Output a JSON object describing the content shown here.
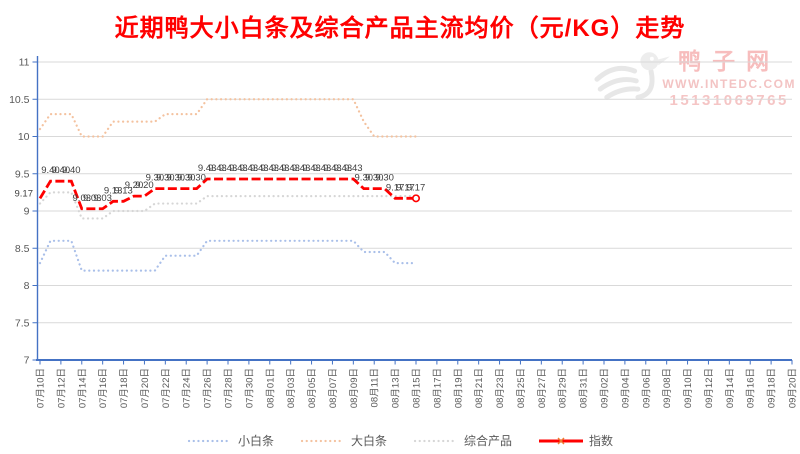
{
  "title": "近期鸭大小白条及综合产品主流均价（元/KG）走势",
  "watermark": {
    "site_name": "鸭子网",
    "url": "WWW.INTEDC.COM",
    "phone": "15131069765",
    "logo_icon": "duck-logo-icon"
  },
  "colors": {
    "title": "#FF0000",
    "axis": "#4472C4",
    "gridline": "#D9D9D9",
    "axis_label": "#595959",
    "data_label": "#404040",
    "watermark_text": "#F6BEBE",
    "watermark_logo": "#E7E7E7",
    "legend_marker_x": "#ED7D31",
    "series_small_white_strip": "#A9BFE9",
    "series_large_white_strip": "#F4C29F",
    "series_composite_product": "#D6D6D6",
    "series_index": "#FF0000"
  },
  "chart_data": {
    "type": "line",
    "title": "近期鸭大小白条及综合产品主流均价（元/KG）走势",
    "xlabel": "",
    "ylabel": "",
    "ylim": [
      7,
      11
    ],
    "yticks": [
      11,
      10.5,
      10,
      9.5,
      9,
      8.5,
      8,
      7.5,
      7
    ],
    "grid": "horizontal",
    "legend_position": "bottom",
    "x_tick_interval_days": 2,
    "x_total_slots": 73,
    "x_tick_labels": [
      "07月10日",
      "07月12日",
      "07月14日",
      "07月16日",
      "07月18日",
      "07月20日",
      "07月22日",
      "07月24日",
      "07月26日",
      "07月28日",
      "07月30日",
      "08月01日",
      "08月03日",
      "08月05日",
      "08月07日",
      "08月09日",
      "08月11日",
      "08月13日",
      "08月15日",
      "08月17日",
      "08月19日",
      "08月21日",
      "08月23日",
      "08月25日",
      "08月27日",
      "08月29日",
      "08月31日",
      "09月02日",
      "09月04日",
      "09月06日",
      "09月08日",
      "09月10日",
      "09月12日",
      "09月14日",
      "09月16日",
      "09月18日",
      "09月20日"
    ],
    "data_dates_range": "07月10日—08月15日",
    "series": [
      {
        "name": "小白条",
        "slug": "small-white-strip",
        "style": "dotted",
        "color": "#A9BFE9",
        "values": [
          8.3,
          8.6,
          8.6,
          8.6,
          8.2,
          8.2,
          8.2,
          8.2,
          8.2,
          8.2,
          8.2,
          8.2,
          8.4,
          8.4,
          8.4,
          8.4,
          8.6,
          8.6,
          8.6,
          8.6,
          8.6,
          8.6,
          8.6,
          8.6,
          8.6,
          8.6,
          8.6,
          8.6,
          8.6,
          8.6,
          8.6,
          8.45,
          8.45,
          8.45,
          8.3,
          8.3,
          8.3
        ]
      },
      {
        "name": "大白条",
        "slug": "large-white-strip",
        "style": "dotted",
        "color": "#F4C29F",
        "values": [
          10.1,
          10.3,
          10.3,
          10.3,
          10.0,
          10.0,
          10.0,
          10.2,
          10.2,
          10.2,
          10.2,
          10.2,
          10.3,
          10.3,
          10.3,
          10.3,
          10.5,
          10.5,
          10.5,
          10.5,
          10.5,
          10.5,
          10.5,
          10.5,
          10.5,
          10.5,
          10.5,
          10.5,
          10.5,
          10.5,
          10.5,
          10.2,
          10.0,
          10.0,
          10.0,
          10.0,
          10.0
        ]
      },
      {
        "name": "综合产品",
        "slug": "composite-product",
        "style": "dotted",
        "color": "#D6D6D6",
        "values": [
          9.1,
          9.25,
          9.25,
          9.25,
          8.9,
          8.9,
          8.9,
          9.0,
          9.0,
          9.0,
          9.0,
          9.1,
          9.1,
          9.1,
          9.1,
          9.1,
          9.2,
          9.2,
          9.2,
          9.2,
          9.2,
          9.2,
          9.2,
          9.2,
          9.2,
          9.2,
          9.2,
          9.2,
          9.2,
          9.2,
          9.2,
          9.2,
          9.2,
          9.2,
          9.2,
          9.2,
          9.2
        ]
      },
      {
        "name": "指数",
        "slug": "index",
        "style": "dash",
        "color": "#FF0000",
        "show_labels": true,
        "end_marker": "open-circle",
        "values": [
          9.17,
          9.4,
          9.4,
          9.4,
          9.03,
          9.03,
          9.03,
          9.13,
          9.13,
          9.2,
          9.2,
          9.3,
          9.3,
          9.3,
          9.3,
          9.3,
          9.43,
          9.43,
          9.43,
          9.43,
          9.43,
          9.43,
          9.43,
          9.43,
          9.43,
          9.43,
          9.43,
          9.43,
          9.43,
          9.43,
          9.43,
          9.3,
          9.3,
          9.3,
          9.17,
          9.17,
          9.17
        ]
      }
    ]
  }
}
